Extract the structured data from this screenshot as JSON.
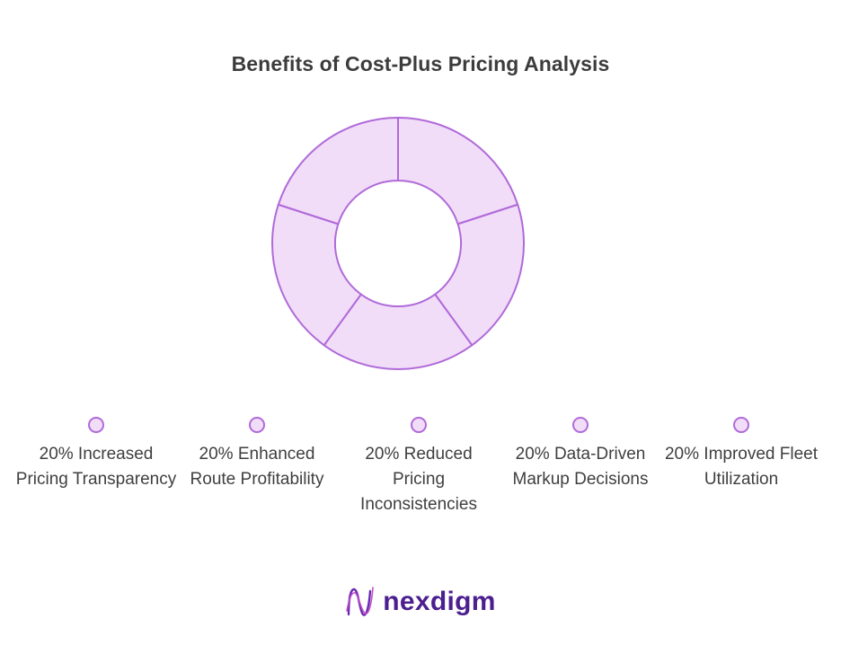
{
  "chart_data": {
    "type": "pie",
    "title": "Benefits of Cost-Plus Pricing Analysis",
    "categories": [
      "Increased Pricing Transparency",
      "Enhanced Route Profitability",
      "Reduced Pricing Inconsistencies",
      "Data-Driven Markup Decisions",
      "Improved Fleet Utilization"
    ],
    "values": [
      20,
      20,
      20,
      20,
      20
    ],
    "legend": {
      "placement": "bottom",
      "labels": [
        "20% Increased Pricing Transparency",
        "20% Enhanced Route Profitability",
        "20% Reduced Pricing Inconsistencies",
        "20% Data-Driven Markup Decisions",
        "20% Improved Fleet Utilization"
      ]
    },
    "style": "donut",
    "colors": {
      "fill": "#f1ddf8",
      "stroke": "#b06ad9"
    }
  },
  "brand": {
    "name": "nexdigm",
    "icon": "nexdigm-logo-icon",
    "color": "#4b1f8f"
  }
}
